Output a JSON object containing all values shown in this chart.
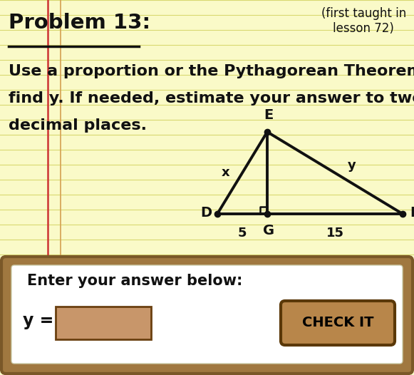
{
  "bg_color": "#FAFAC8",
  "notebook_line_color": "#D8D870",
  "red_line_color": "#CC3333",
  "title": "Problem 13:",
  "subtitle": "(first taught in\nlesson 72)",
  "body_text_line1": "Use a proportion or the Pythagorean Theorem to",
  "body_text_line2": "find y. If needed, estimate your answer to two",
  "body_text_line3": "decimal places.",
  "geometry": {
    "D": [
      305,
      300
    ],
    "G": [
      375,
      300
    ],
    "F": [
      565,
      300
    ],
    "E": [
      375,
      185
    ],
    "label_D": "D",
    "label_G": "G",
    "label_F": "F",
    "label_E": "E",
    "seg_DG": "5",
    "seg_GF": "15",
    "seg_DE": "x",
    "seg_EF": "y"
  },
  "answer_box": {
    "outer_color": "#A07840",
    "outer_edge": "#7A5828",
    "inner_bg": "#FFFFFF",
    "label": "Enter your answer below:",
    "y_label": "y =",
    "input_color": "#C8966A",
    "input_edge": "#6A4010",
    "button_text": "CHECK IT",
    "button_color": "#B8864A",
    "button_edge": "#5A3808",
    "button_text_color": "#000000"
  }
}
